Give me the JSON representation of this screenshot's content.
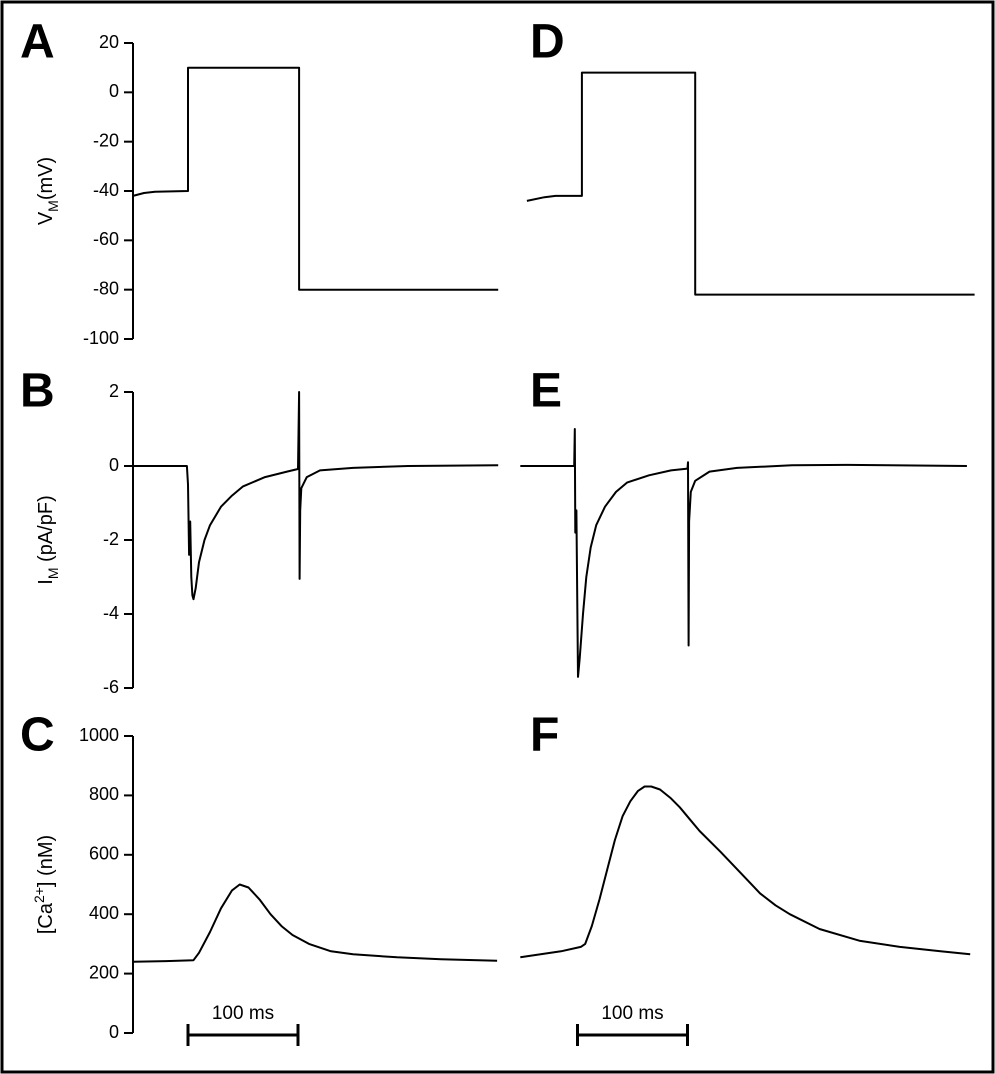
{
  "chart_data": [
    {
      "type": "line",
      "panel": "A",
      "ylabel": [
        {
          "text": "V"
        },
        {
          "text": "M",
          "shift": "sub"
        },
        {
          "text": "(mV)"
        }
      ],
      "ylim": [
        -100,
        20
      ],
      "yticks": [
        20,
        0,
        -20,
        -40,
        -60,
        -80,
        -100
      ],
      "xlim": [
        0,
        333
      ],
      "color": "#000000",
      "x": [
        0,
        10,
        20,
        50,
        50,
        151,
        151,
        332
      ],
      "values": [
        -42,
        -40.8,
        -40.3,
        -40,
        10,
        10,
        -80,
        -80
      ]
    },
    {
      "type": "line",
      "panel": "B",
      "ylabel": [
        {
          "text": "I"
        },
        {
          "text": "M",
          "shift": "sub"
        },
        {
          "text": " (pA/pF)"
        }
      ],
      "ylim": [
        -6,
        2
      ],
      "yticks": [
        2,
        0,
        -2,
        -4,
        -6
      ],
      "xlim": [
        0,
        333
      ],
      "color": "#000000",
      "x": [
        0,
        49,
        50,
        51,
        52,
        53,
        54,
        55,
        57,
        60,
        65,
        70,
        80,
        90,
        100,
        120,
        140,
        150,
        151,
        151.5,
        152,
        153,
        158,
        170,
        200,
        250,
        332
      ],
      "values": [
        0,
        0,
        -0.5,
        -2.4,
        -1.5,
        -3,
        -3.5,
        -3.6,
        -3.3,
        -2.6,
        -2,
        -1.6,
        -1.1,
        -0.8,
        -0.55,
        -0.3,
        -0.15,
        -0.08,
        2,
        -3.05,
        -1.2,
        -0.6,
        -0.3,
        -0.12,
        -0.05,
        0,
        0.02
      ]
    },
    {
      "type": "line",
      "panel": "C",
      "ylabel": [
        {
          "text": "[Ca"
        },
        {
          "text": "2+",
          "shift": "super"
        },
        {
          "text": "] (nM)"
        }
      ],
      "ylim": [
        0,
        1000
      ],
      "yticks": [
        0,
        200,
        400,
        600,
        800,
        1000
      ],
      "xlim": [
        0,
        333
      ],
      "color": "#000000",
      "x": [
        0,
        30,
        55,
        60,
        70,
        80,
        90,
        97,
        105,
        115,
        125,
        135,
        145,
        160,
        180,
        200,
        240,
        280,
        331
      ],
      "values": [
        240,
        242,
        245,
        270,
        340,
        420,
        480,
        500,
        490,
        450,
        400,
        360,
        330,
        300,
        275,
        265,
        255,
        248,
        243
      ],
      "scale_bar": {
        "start": 50,
        "length": 100,
        "label": "100 ms"
      }
    },
    {
      "type": "line",
      "panel": "D",
      "ylim": [
        -100,
        20
      ],
      "xlim": [
        0,
        418
      ],
      "color": "#000000",
      "x": [
        9,
        25,
        35,
        59,
        59,
        162,
        162,
        416
      ],
      "values": [
        -44,
        -42.5,
        -42,
        -42,
        8,
        8,
        -82,
        -82
      ]
    },
    {
      "type": "line",
      "panel": "E",
      "ylim": [
        -6,
        2
      ],
      "xlim": [
        0,
        418
      ],
      "color": "#000000",
      "x": [
        3,
        52,
        52.5,
        53,
        54,
        55.5,
        57,
        60,
        63,
        67,
        72,
        80,
        90,
        100,
        120,
        140,
        155,
        155.5,
        156,
        156.5,
        158,
        162,
        175,
        200,
        250,
        300,
        409
      ],
      "values": [
        0,
        0,
        1.0,
        -1.8,
        -1.2,
        -5.7,
        -5.2,
        -4.0,
        -3.0,
        -2.2,
        -1.6,
        -1.1,
        -0.7,
        -0.45,
        -0.25,
        -0.12,
        -0.07,
        0.1,
        -4.85,
        -1.5,
        -0.7,
        -0.4,
        -0.15,
        -0.05,
        0.02,
        0.03,
        0
      ]
    },
    {
      "type": "line",
      "panel": "F",
      "ylim": [
        0,
        1000
      ],
      "xlim": [
        0,
        418
      ],
      "color": "#000000",
      "x": [
        3,
        40,
        58,
        62,
        68,
        75,
        82,
        89,
        96,
        103,
        110,
        116,
        122,
        130,
        140,
        148,
        157,
        166,
        185,
        203,
        221,
        235,
        248,
        275,
        312,
        348,
        385,
        412
      ],
      "values": [
        255,
        275,
        290,
        300,
        360,
        450,
        550,
        650,
        730,
        780,
        815,
        830,
        830,
        820,
        790,
        760,
        720,
        680,
        610,
        540,
        470,
        430,
        400,
        350,
        310,
        290,
        275,
        265
      ],
      "scale_bar": {
        "start": 55,
        "length": 100,
        "label": "100 ms"
      }
    }
  ]
}
